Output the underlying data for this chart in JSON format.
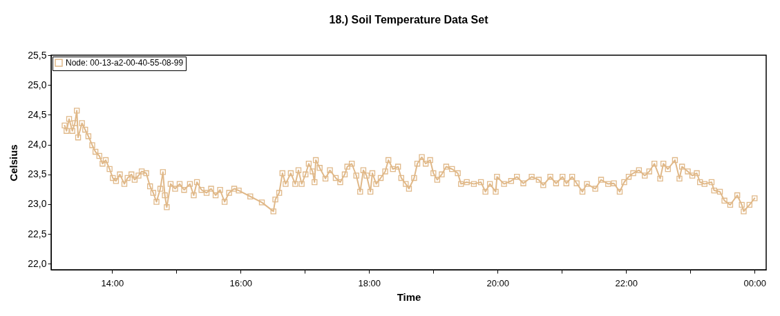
{
  "chart_data": {
    "type": "line",
    "title": "18.) Soil Temperature Data Set",
    "xlabel": "Time",
    "ylabel": "Celsius",
    "x": [
      13.26,
      13.29,
      13.33,
      13.38,
      13.42,
      13.45,
      13.47,
      13.53,
      13.58,
      13.63,
      13.69,
      13.74,
      13.8,
      13.85,
      13.9,
      13.96,
      14.01,
      14.06,
      14.12,
      14.19,
      14.24,
      14.3,
      14.35,
      14.41,
      14.46,
      14.53,
      14.59,
      14.64,
      14.69,
      14.75,
      14.79,
      14.82,
      14.85,
      14.91,
      14.98,
      15.05,
      15.12,
      15.21,
      15.27,
      15.32,
      15.39,
      15.47,
      15.54,
      15.61,
      15.68,
      15.75,
      15.82,
      15.9,
      15.97,
      16.15,
      16.33,
      16.51,
      16.54,
      16.6,
      16.65,
      16.7,
      16.78,
      16.85,
      16.9,
      16.95,
      17.01,
      17.06,
      17.12,
      17.15,
      17.17,
      17.23,
      17.32,
      17.39,
      17.48,
      17.55,
      17.62,
      17.66,
      17.73,
      17.8,
      17.86,
      17.91,
      17.96,
      18.02,
      18.05,
      18.11,
      18.18,
      18.25,
      18.3,
      18.37,
      18.45,
      18.5,
      18.57,
      18.62,
      18.7,
      18.75,
      18.82,
      18.88,
      18.95,
      19.0,
      19.06,
      19.13,
      19.2,
      19.29,
      19.38,
      19.43,
      19.52,
      19.63,
      19.74,
      19.81,
      19.88,
      19.97,
      19.99,
      20.1,
      20.21,
      20.3,
      20.4,
      20.53,
      20.64,
      20.71,
      20.82,
      20.91,
      21.01,
      21.07,
      21.16,
      21.23,
      21.32,
      21.39,
      21.52,
      21.61,
      21.72,
      21.81,
      21.9,
      21.97,
      22.04,
      22.11,
      22.2,
      22.29,
      22.36,
      22.44,
      22.53,
      22.58,
      22.65,
      22.76,
      22.83,
      22.87,
      22.96,
      23.03,
      23.1,
      23.15,
      23.22,
      23.33,
      23.37,
      23.46,
      23.53,
      23.62,
      23.73,
      23.8,
      23.83,
      23.92,
      24.0
    ],
    "series": [
      {
        "name": "Node: 00-13-a2-00-40-55-08-99",
        "color": "#e0b888",
        "values": [
          24.32,
          24.23,
          24.43,
          24.23,
          24.36,
          24.57,
          24.12,
          24.36,
          24.25,
          24.14,
          23.99,
          23.88,
          23.81,
          23.68,
          23.74,
          23.59,
          23.44,
          23.39,
          23.5,
          23.34,
          23.44,
          23.5,
          23.41,
          23.48,
          23.55,
          23.52,
          23.3,
          23.19,
          23.04,
          23.26,
          23.54,
          23.15,
          22.95,
          23.34,
          23.26,
          23.34,
          23.24,
          23.34,
          23.15,
          23.37,
          23.24,
          23.19,
          23.26,
          23.15,
          23.24,
          23.04,
          23.19,
          23.26,
          23.23,
          23.13,
          23.03,
          22.88,
          23.08,
          23.19,
          23.52,
          23.34,
          23.52,
          23.34,
          23.57,
          23.34,
          23.5,
          23.68,
          23.55,
          23.37,
          23.74,
          23.61,
          23.43,
          23.57,
          23.44,
          23.37,
          23.5,
          23.63,
          23.68,
          23.48,
          23.21,
          23.57,
          23.48,
          23.21,
          23.52,
          23.34,
          23.44,
          23.55,
          23.74,
          23.59,
          23.63,
          23.44,
          23.34,
          23.26,
          23.44,
          23.68,
          23.79,
          23.68,
          23.74,
          23.52,
          23.41,
          23.5,
          23.63,
          23.59,
          23.52,
          23.34,
          23.37,
          23.34,
          23.37,
          23.21,
          23.34,
          23.21,
          23.46,
          23.34,
          23.39,
          23.46,
          23.35,
          23.46,
          23.41,
          23.32,
          23.46,
          23.35,
          23.46,
          23.35,
          23.46,
          23.35,
          23.21,
          23.34,
          23.26,
          23.41,
          23.34,
          23.35,
          23.21,
          23.37,
          23.46,
          23.52,
          23.57,
          23.48,
          23.55,
          23.68,
          23.43,
          23.68,
          23.59,
          23.74,
          23.43,
          23.63,
          23.55,
          23.48,
          23.52,
          23.37,
          23.34,
          23.37,
          23.23,
          23.21,
          23.06,
          22.99,
          23.15,
          22.99,
          22.88,
          22.99,
          23.1
        ]
      }
    ],
    "xlim": [
      13.05,
      24.18
    ],
    "xticks": [
      {
        "value": 14,
        "label": "14:00"
      },
      {
        "value": 15,
        "label": null
      },
      {
        "value": 16,
        "label": "16:00"
      },
      {
        "value": 17,
        "label": null
      },
      {
        "value": 18,
        "label": "18:00"
      },
      {
        "value": 19,
        "label": null
      },
      {
        "value": 20,
        "label": "20:00"
      },
      {
        "value": 21,
        "label": null
      },
      {
        "value": 22,
        "label": "22:00"
      },
      {
        "value": 23,
        "label": null
      },
      {
        "value": 24,
        "label": "00:00"
      }
    ],
    "ylim": [
      21.9,
      25.5
    ],
    "yticks": [
      {
        "value": 22,
        "label": "22,0"
      },
      {
        "value": 22.5,
        "label": "22,5"
      },
      {
        "value": 23,
        "label": "23,0"
      },
      {
        "value": 23.5,
        "label": "23,5"
      },
      {
        "value": 24,
        "label": "24,0"
      },
      {
        "value": 24.5,
        "label": "24,5"
      },
      {
        "value": 25,
        "label": "25,0"
      },
      {
        "value": 25.5,
        "label": "25,5"
      }
    ],
    "legend": "top left",
    "marker": "square",
    "line_style": "solid"
  }
}
